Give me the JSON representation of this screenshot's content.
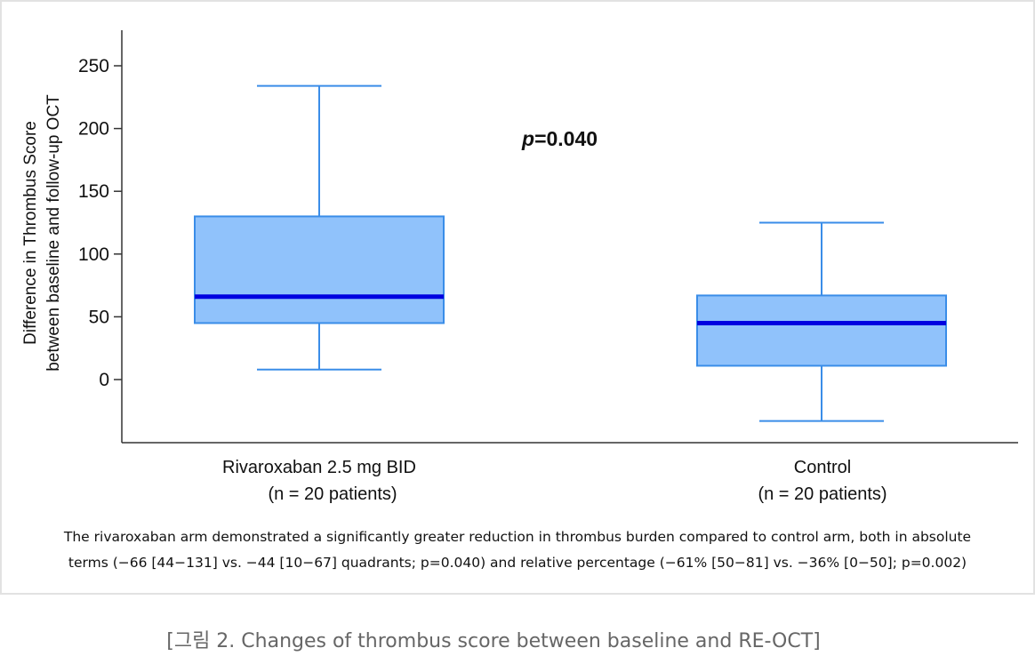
{
  "chart_data": {
    "type": "box",
    "title": "",
    "xlabel": "",
    "ylabel": "Difference in Thrombus Score between baseline and follow-up OCT",
    "ylabel_lines": [
      "Difference in Thrombus Score",
      "between baseline and follow-up OCT"
    ],
    "yticks": [
      0,
      50,
      100,
      150,
      200,
      250
    ],
    "ylim": [
      -50,
      275
    ],
    "grid": false,
    "categories": [
      "Rivaroxaban 2.5 mg BID (n = 20 patients)",
      "Control (n = 20 patients)"
    ],
    "category_lines": [
      [
        "Rivaroxaban 2.5 mg BID",
        "(n = 20 patients)"
      ],
      [
        "Control",
        "(n = 20 patients)"
      ]
    ],
    "series": [
      {
        "name": "Rivaroxaban 2.5 mg BID",
        "whisker_low": 8,
        "q1": 45,
        "median": 66,
        "q3": 130,
        "whisker_high": 234
      },
      {
        "name": "Control",
        "whisker_low": -33,
        "q1": 11,
        "median": 45,
        "q3": 67,
        "whisker_high": 125
      }
    ],
    "annotations": [
      {
        "text_italic": "p",
        "text": "=0.040"
      }
    ],
    "colors": {
      "box_fill": "#90c2fb",
      "box_edge": "#3a8de8",
      "median": "#0000e0",
      "axis": "#333333"
    }
  },
  "note": {
    "line1": "The rivaroxaban arm demonstrated a significantly greater reduction in thrombus burden compared to control arm, both in absolute",
    "line2": "terms (−66 [44−131] vs. −44 [10−67] quadrants; p=0.040) and relative percentage (−61% [50−81] vs. −36% [0−50]; p=0.002)"
  },
  "caption": "[그림 2. Changes of thrombus score between baseline and RE-OCT]"
}
